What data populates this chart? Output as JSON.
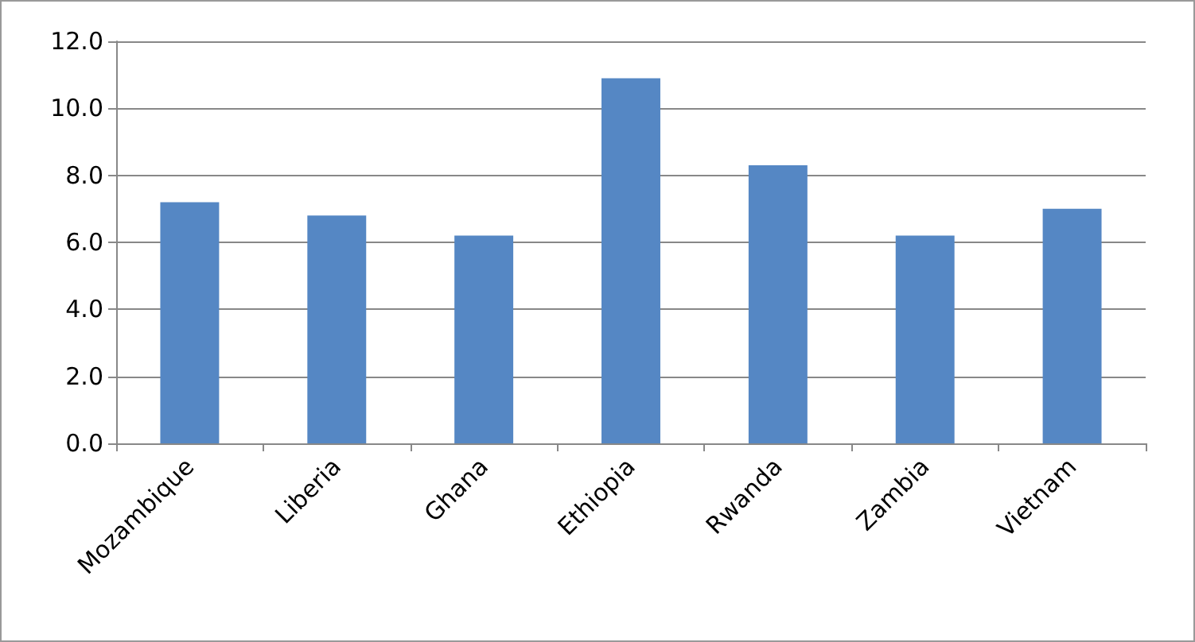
{
  "chart_data": {
    "type": "bar",
    "categories": [
      "Mozambique",
      "Liberia",
      "Ghana",
      "Ethiopia",
      "Rwanda",
      "Zambia",
      "Vietnam"
    ],
    "values": [
      7.2,
      6.8,
      6.2,
      10.9,
      8.3,
      6.2,
      7.0
    ],
    "color": "#5587c4",
    "ylim": [
      0,
      12
    ],
    "yticks": [
      {
        "value": 0,
        "label": "0.0"
      },
      {
        "value": 2,
        "label": "2.0"
      },
      {
        "value": 4,
        "label": "4.0"
      },
      {
        "value": 6,
        "label": "6.0"
      },
      {
        "value": 8,
        "label": "8.0"
      },
      {
        "value": 10,
        "label": "10.0"
      },
      {
        "value": 12,
        "label": "12.0"
      }
    ],
    "grid": "y"
  }
}
